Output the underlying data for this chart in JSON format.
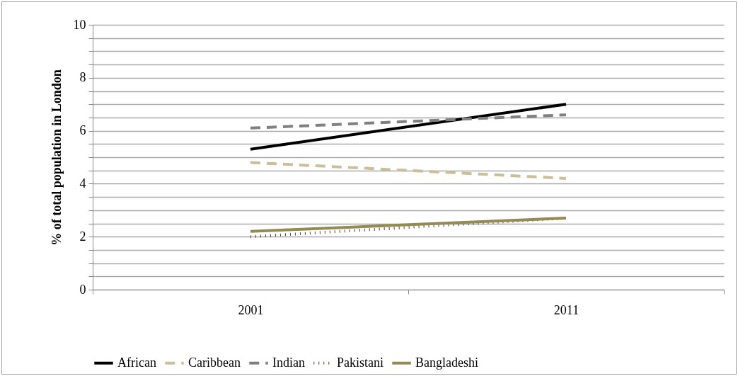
{
  "chart_data": {
    "type": "line",
    "ylabel": "% of total population in London",
    "categories": [
      "2001",
      "2011"
    ],
    "series": [
      {
        "name": "African",
        "color": "#000000",
        "line_style": "solid",
        "values": [
          5.3,
          7.0
        ]
      },
      {
        "name": "Caribbean",
        "color": "#c9c09a",
        "line_style": "dashed",
        "values": [
          4.8,
          4.2
        ]
      },
      {
        "name": "Indian",
        "color": "#808080",
        "line_style": "dashed",
        "values": [
          6.1,
          6.6
        ]
      },
      {
        "name": "Pakistani",
        "color": "#4a4326",
        "line_style": "dotted",
        "values": [
          2.0,
          2.7
        ]
      },
      {
        "name": "Bangladeshi",
        "color": "#948a54",
        "line_style": "solid",
        "values": [
          2.2,
          2.7
        ]
      }
    ],
    "ylim": [
      0,
      10
    ],
    "yticks": [
      0,
      {
        "value": 0.5,
        "label": null
      },
      {
        "value": 1,
        "label": null
      },
      {
        "value": 1.5,
        "label": null
      },
      2,
      {
        "value": 2.5,
        "label": null
      },
      {
        "value": 3,
        "label": null
      },
      {
        "value": 3.5,
        "label": null
      },
      4,
      {
        "value": 4.5,
        "label": null
      },
      {
        "value": 5,
        "label": null
      },
      {
        "value": 5.5,
        "label": null
      },
      6,
      {
        "value": 6.5,
        "label": null
      },
      {
        "value": 7,
        "label": null
      },
      {
        "value": 7.5,
        "label": null
      },
      8,
      {
        "value": 8.5,
        "label": null
      },
      {
        "value": 9,
        "label": null
      },
      {
        "value": 9.5,
        "label": null
      },
      10
    ],
    "grid": true,
    "legend": "bottom",
    "marker": "none"
  }
}
